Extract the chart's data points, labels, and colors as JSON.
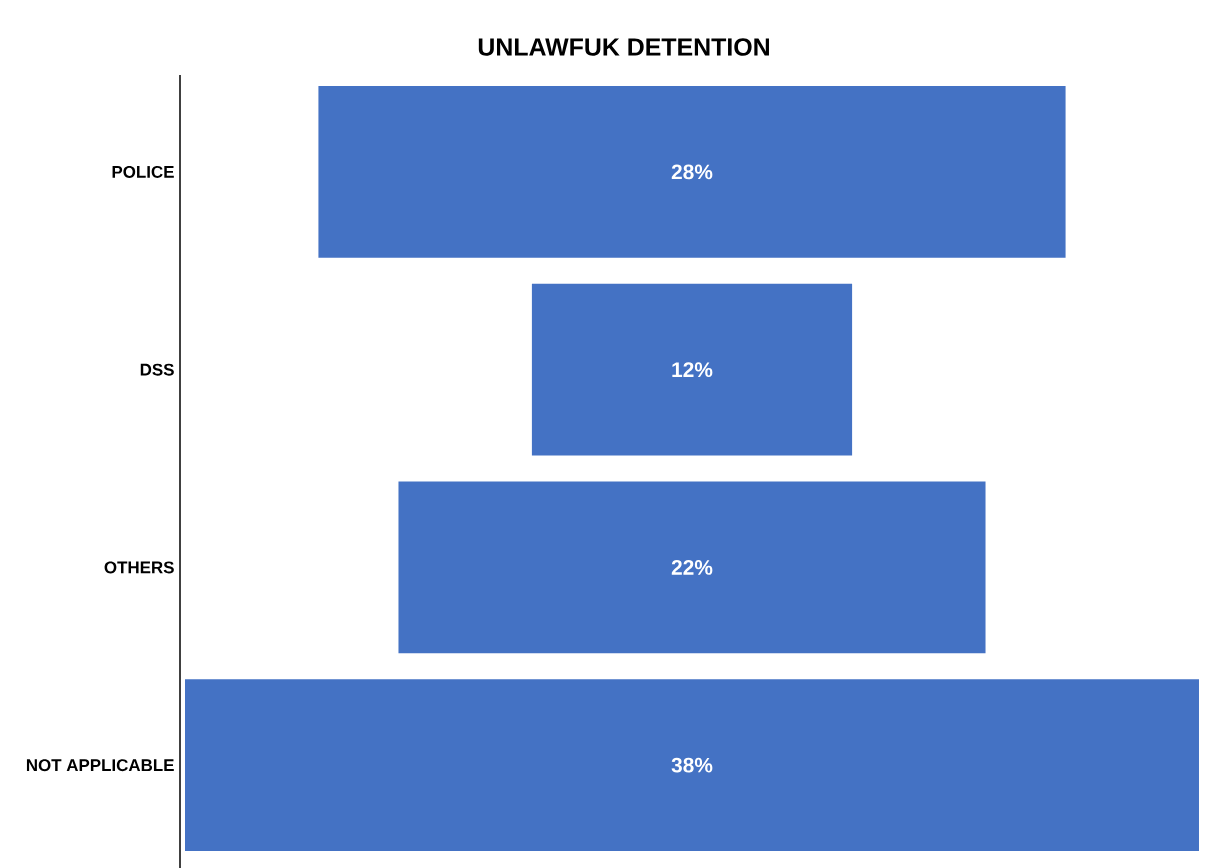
{
  "chart_data": {
    "type": "other",
    "title": "UNLAWFUK DETENTION",
    "categories": [
      "POLICE",
      "DSS",
      "OTHERS",
      "NOT APPLICABLE"
    ],
    "values": [
      28,
      12,
      22,
      38
    ],
    "value_labels": [
      "28%",
      "12%",
      "22%",
      "38%"
    ],
    "color": "#4472c4"
  }
}
